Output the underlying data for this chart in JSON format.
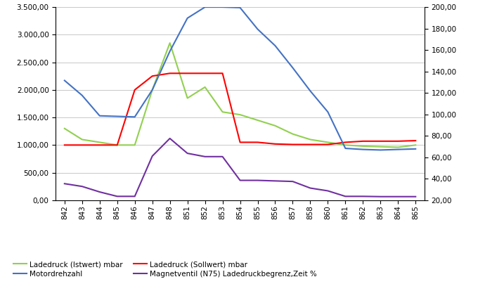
{
  "x_labels": [
    "842",
    "843",
    "844",
    "845",
    "846",
    "847",
    "848",
    "851",
    "852",
    "853",
    "854",
    "855",
    "856",
    "857",
    "858",
    "860",
    "861",
    "862",
    "863",
    "864",
    "865"
  ],
  "x_indices": [
    0,
    1,
    2,
    3,
    4,
    5,
    6,
    7,
    8,
    9,
    10,
    11,
    12,
    13,
    14,
    15,
    16,
    17,
    18,
    19,
    20
  ],
  "ladedruck_ist": [
    1300,
    1100,
    1050,
    1000,
    1000,
    2000,
    2850,
    1850,
    2050,
    1600,
    1550,
    1450,
    1350,
    1200,
    1100,
    1050,
    1000,
    980,
    970,
    960,
    1000
  ],
  "ladedruck_soll": [
    1000,
    1000,
    1000,
    1000,
    2000,
    2250,
    2300,
    2300,
    2300,
    2300,
    1050,
    1050,
    1020,
    1010,
    1010,
    1010,
    1050,
    1070,
    1070,
    1070,
    1080
  ],
  "motordrehzahl": [
    2170,
    1900,
    1530,
    1520,
    1510,
    2000,
    2700,
    3300,
    3500,
    3500,
    3490,
    3100,
    2800,
    2400,
    1980,
    1600,
    940,
    920,
    910,
    920,
    930
  ],
  "magnetventil": [
    300,
    250,
    150,
    70,
    70,
    800,
    1120,
    850,
    790,
    790,
    360,
    360,
    350,
    340,
    220,
    170,
    70,
    70,
    65,
    65,
    65
  ],
  "color_ist": "#92D050",
  "color_soll": "#FF0000",
  "color_motor": "#4472C4",
  "color_magnet": "#7030A0",
  "ylim_left": [
    0,
    3500
  ],
  "ylim_right": [
    20,
    200
  ],
  "yticks_left": [
    0,
    500,
    1000,
    1500,
    2000,
    2500,
    3000,
    3500
  ],
  "yticks_right": [
    20,
    40,
    60,
    80,
    100,
    120,
    140,
    160,
    180,
    200
  ],
  "legend_ist": "Ladedruck (Istwert) mbar",
  "legend_soll": "Ladedruck (Sollwert) mbar",
  "legend_motor": "Motordrehzahl",
  "legend_magnet": "Magnetventil (N75) Ladedruckbegrenz,Zeit %",
  "bg_color": "#FFFFFF",
  "grid_color": "#C8C8C8",
  "linewidth": 1.5,
  "tick_fontsize": 7.5,
  "legend_fontsize": 7.5
}
